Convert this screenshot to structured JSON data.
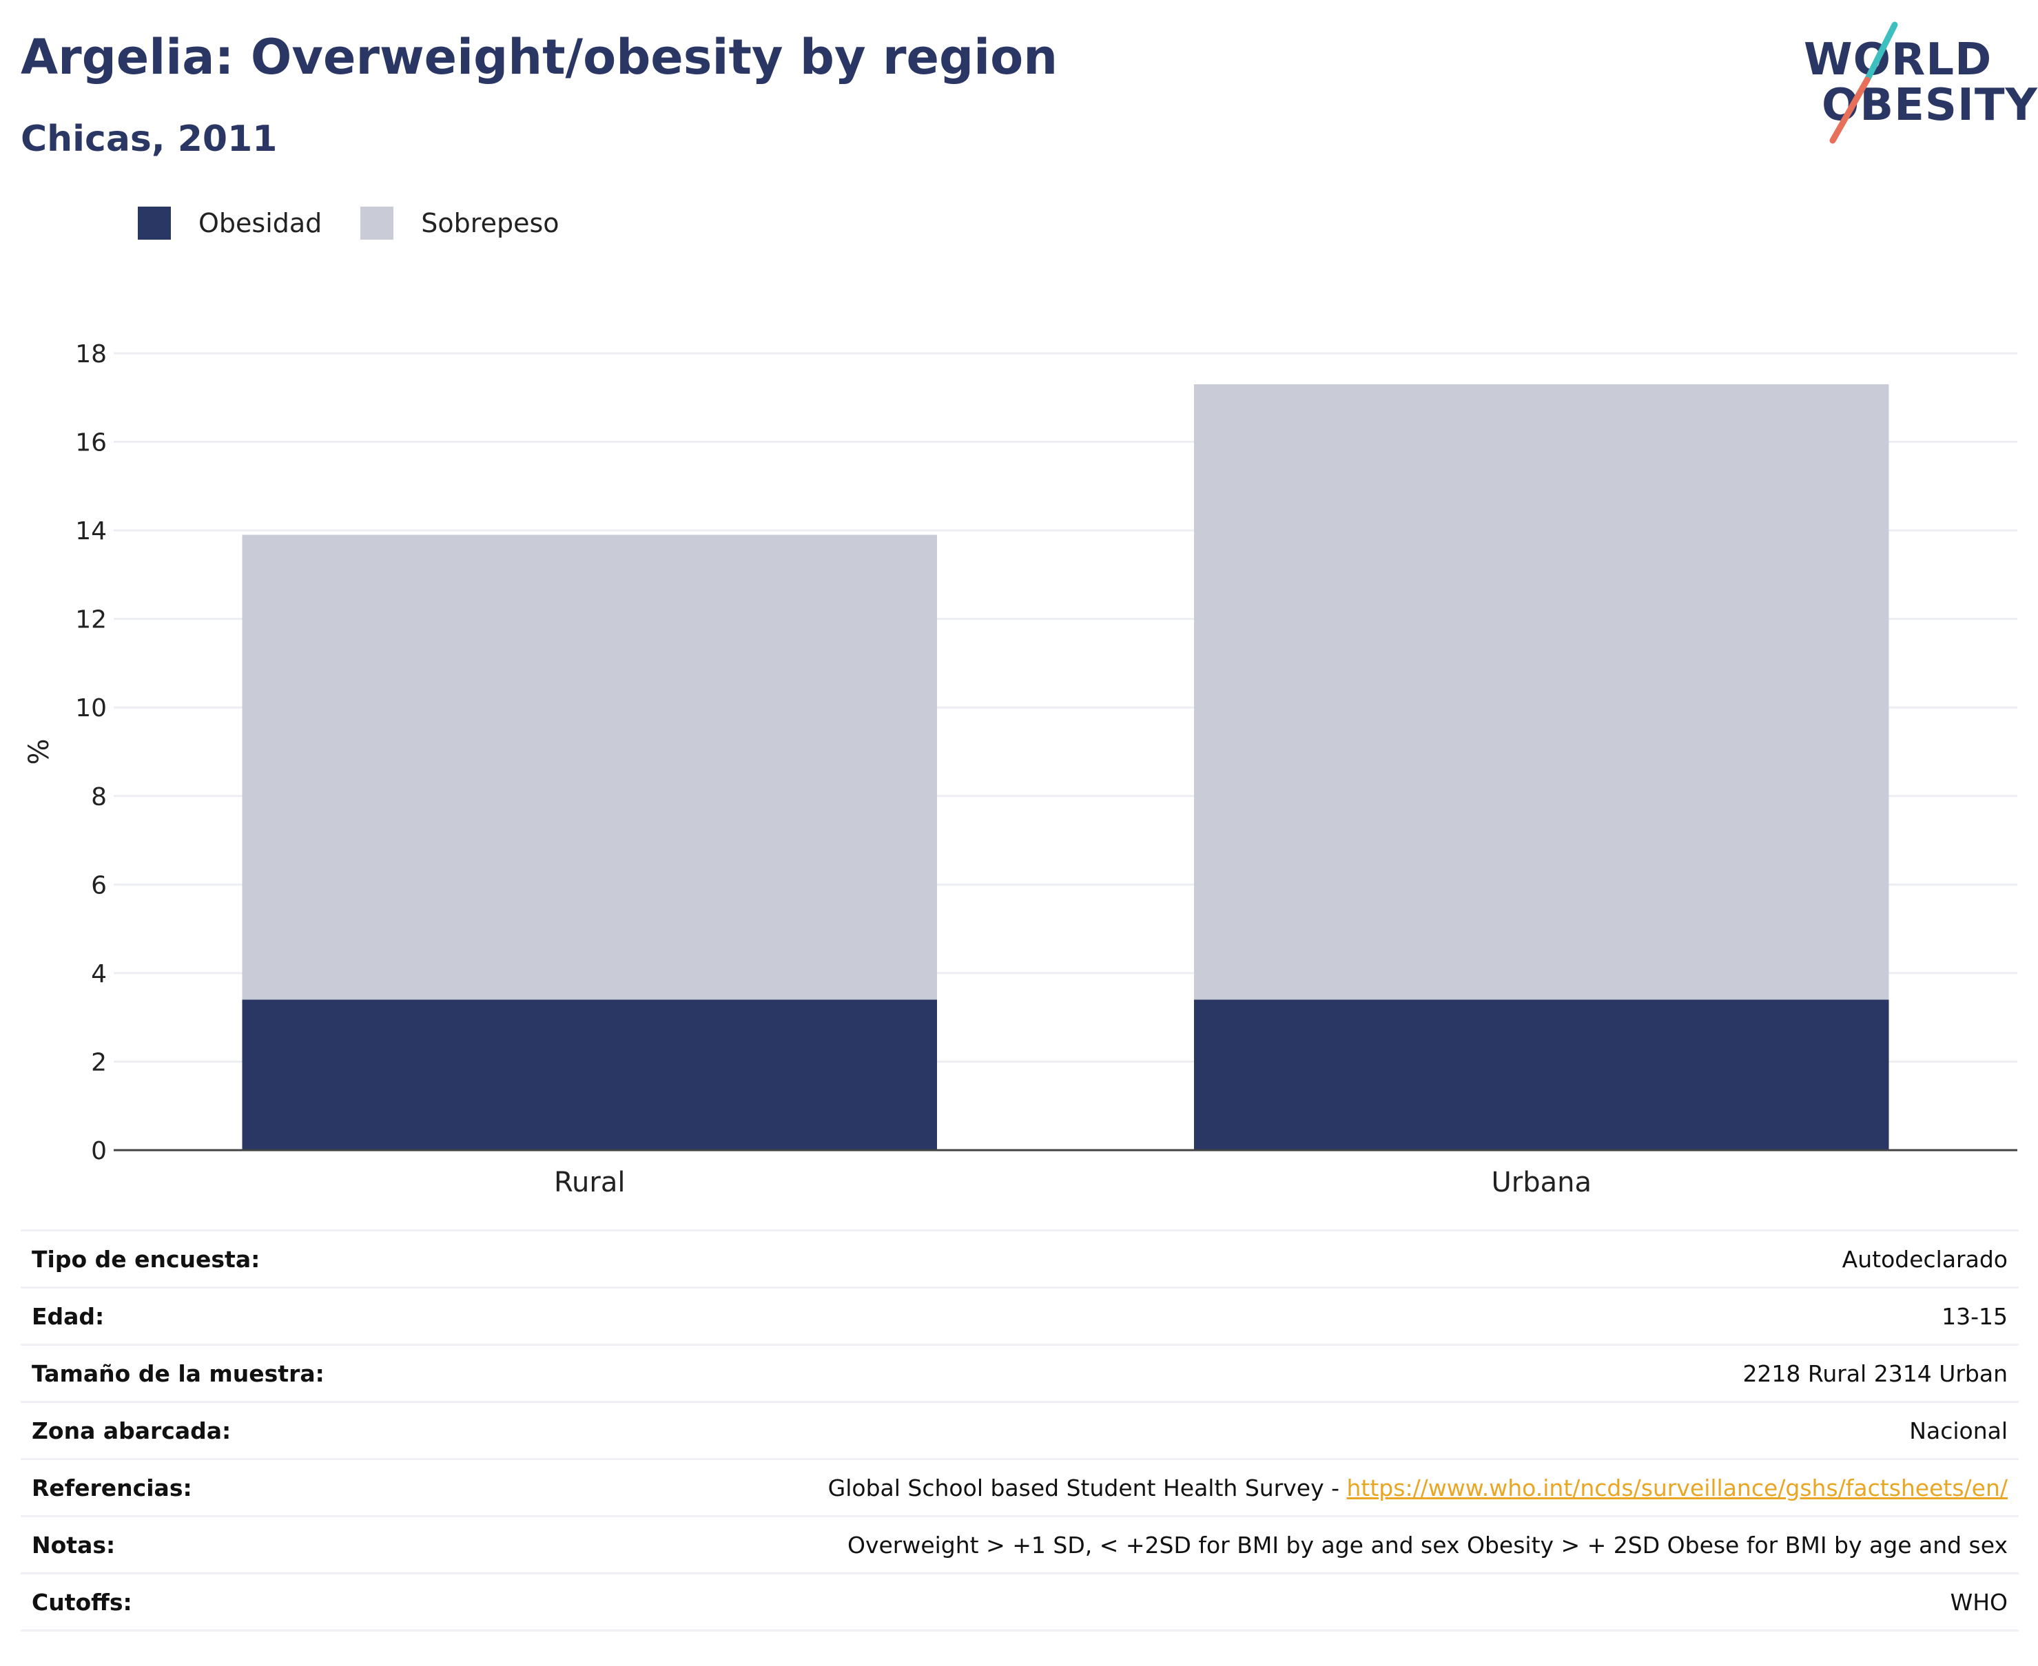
{
  "header": {
    "title": "Argelia: Overweight/obesity by region",
    "subtitle": "Chicas, 2011"
  },
  "logo": {
    "line1": "WORLD",
    "line2": "OBESITY",
    "colors": {
      "teal": "#3dbfc0",
      "coral": "#e8705a",
      "navy": "#2a3663"
    }
  },
  "legend": {
    "items": [
      {
        "label": "Obesidad",
        "color": "#2a3663"
      },
      {
        "label": "Sobrepeso",
        "color": "#c9ccd7"
      }
    ]
  },
  "chart_data": {
    "type": "bar",
    "stacked": true,
    "categories": [
      "Rural",
      "Urbana"
    ],
    "series": [
      {
        "name": "Obesidad",
        "color": "#2a3663",
        "values": [
          3.4,
          3.4
        ]
      },
      {
        "name": "Sobrepeso",
        "color": "#c9ccd7",
        "values": [
          10.5,
          13.9
        ]
      }
    ],
    "xlabel": "",
    "ylabel": "%",
    "ylim": [
      0,
      18
    ],
    "yticks": [
      0,
      2,
      4,
      6,
      8,
      10,
      12,
      14,
      16,
      18
    ],
    "grid": true,
    "legend_position": "top-left"
  },
  "info": {
    "rows": [
      {
        "key": "Tipo de encuesta:",
        "value": "Autodeclarado"
      },
      {
        "key": "Edad:",
        "value": "13-15"
      },
      {
        "key": "Tamaño de la muestra:",
        "value": "2218 Rural 2314 Urban"
      },
      {
        "key": "Zona abarcada:",
        "value": "Nacional"
      },
      {
        "key": "Referencias:",
        "value": "Global School based Student Health Survey - ",
        "link": "https://www.who.int/ncds/surveillance/gshs/factsheets/en/"
      },
      {
        "key": "Notas:",
        "value": "Overweight > +1 SD, < +2SD for BMI by age and sex Obesity > + 2SD Obese for BMI by age and sex"
      },
      {
        "key": "Cutoffs:",
        "value": "WHO"
      }
    ]
  }
}
